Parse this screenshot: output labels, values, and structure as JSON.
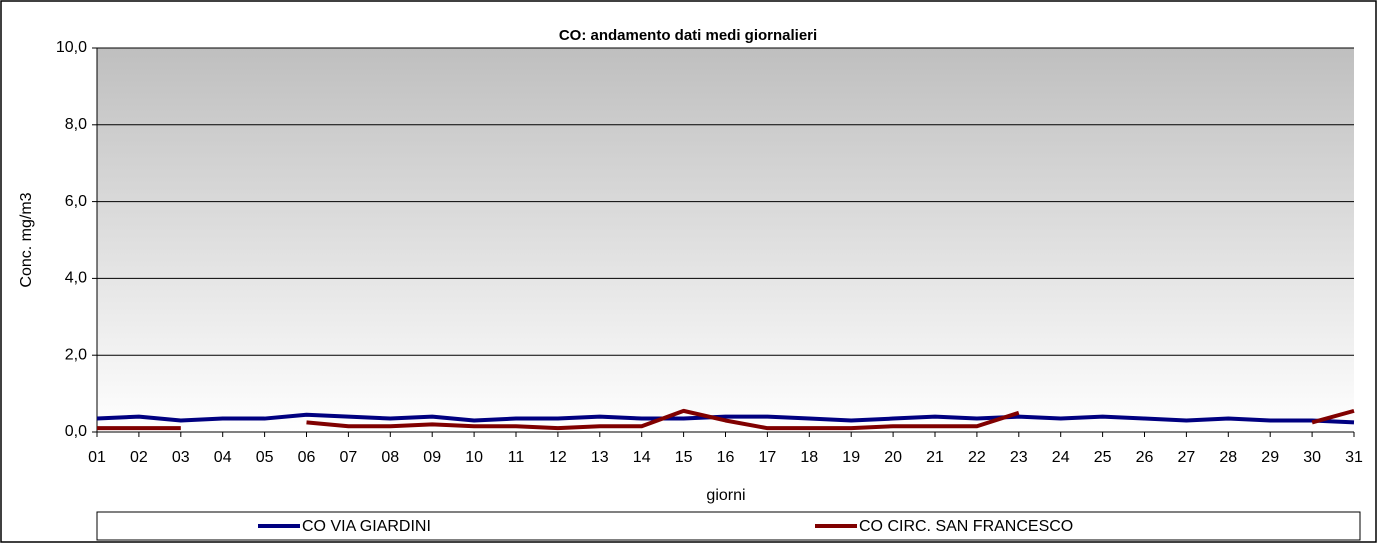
{
  "chart_data": {
    "type": "line",
    "title": "CO: andamento dati medi giornalieri",
    "x_label": "giorni",
    "y_label": "Conc. mg/m3",
    "categories": [
      "01",
      "02",
      "03",
      "04",
      "05",
      "06",
      "07",
      "08",
      "09",
      "10",
      "11",
      "12",
      "13",
      "14",
      "15",
      "16",
      "17",
      "18",
      "19",
      "20",
      "21",
      "22",
      "23",
      "24",
      "25",
      "26",
      "27",
      "28",
      "29",
      "30",
      "31"
    ],
    "series": [
      {
        "name": "CO VIA GIARDINI",
        "color": "#000080",
        "values": [
          0.35,
          0.4,
          0.3,
          0.35,
          0.35,
          0.45,
          0.4,
          0.35,
          0.4,
          0.3,
          0.35,
          0.35,
          0.4,
          0.35,
          0.35,
          0.4,
          0.4,
          0.35,
          0.3,
          0.35,
          0.4,
          0.35,
          0.4,
          0.35,
          0.4,
          0.35,
          0.3,
          0.35,
          0.3,
          0.3,
          0.25
        ]
      },
      {
        "name": "CO CIRC. SAN FRANCESCO",
        "color": "#800000",
        "values": [
          0.1,
          0.1,
          0.1,
          null,
          null,
          0.25,
          0.15,
          0.15,
          0.2,
          0.15,
          0.15,
          0.1,
          0.15,
          0.15,
          0.55,
          0.3,
          0.1,
          0.1,
          0.1,
          0.15,
          0.15,
          0.15,
          0.5,
          null,
          null,
          null,
          null,
          null,
          null,
          0.25,
          0.55
        ]
      }
    ],
    "ylim": [
      0,
      10
    ],
    "yticks": [
      {
        "value": 0,
        "label": "0,0"
      },
      {
        "value": 2,
        "label": "2,0"
      },
      {
        "value": 4,
        "label": "4,0"
      },
      {
        "value": 6,
        "label": "6,0"
      },
      {
        "value": 8,
        "label": "8,0"
      },
      {
        "value": 10,
        "label": "10,0"
      }
    ],
    "grid": true,
    "legend": "bottom"
  }
}
